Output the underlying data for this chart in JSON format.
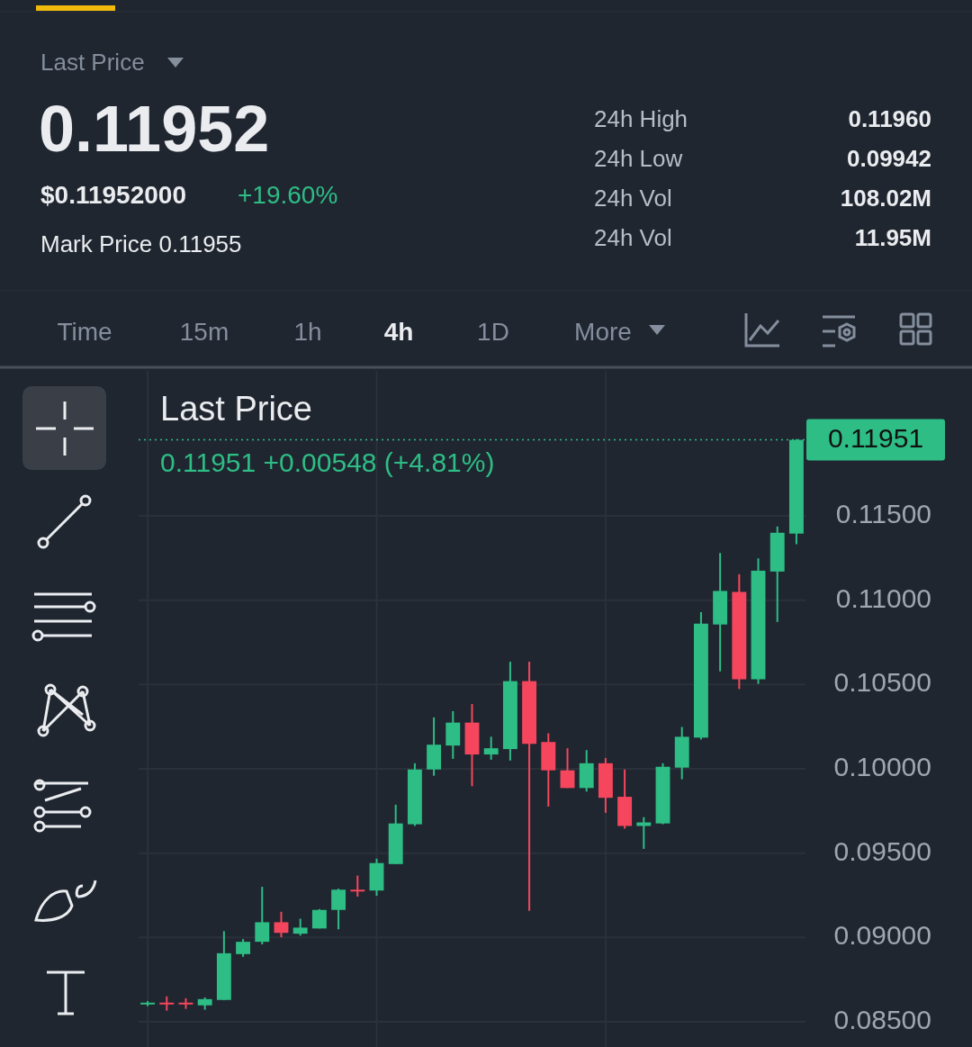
{
  "chart_data": {
    "type": "candlestick",
    "title": "Last Price",
    "annotations": [
      "Last Price",
      "0.11952",
      "$0.11952000",
      "+19.60%",
      "Mark Price 0.11955",
      "24h High",
      "0.11960",
      "24h Low",
      "0.09942",
      "24h Vol",
      "108.02M",
      "24h Vol",
      "11.95M",
      "Time",
      "15m",
      "1h",
      "4h",
      "1D",
      "More",
      "0.11951  +0.00548 (+4.81%)"
    ],
    "categories": [
      null,
      null,
      null,
      null,
      null,
      null,
      null,
      null,
      null,
      null,
      null,
      null,
      null,
      null,
      null,
      null,
      null,
      null,
      null,
      null,
      null,
      null,
      null,
      null,
      null,
      null,
      null,
      null,
      null,
      null,
      null,
      null,
      null,
      null,
      null
    ],
    "ohlc": [
      [
        0.0861,
        0.08623,
        0.08592,
        0.08613
      ],
      [
        0.08613,
        0.0865,
        0.08566,
        0.0861
      ],
      [
        0.08613,
        0.08639,
        0.08576,
        0.0861
      ],
      [
        0.08597,
        0.08644,
        0.08571,
        0.08634
      ],
      [
        0.08629,
        0.09037,
        0.08629,
        0.08906
      ],
      [
        0.08901,
        0.0899,
        0.08885,
        0.08974
      ],
      [
        0.08974,
        0.093,
        0.08959,
        0.0909
      ],
      [
        0.0909,
        0.09152,
        0.09001,
        0.09027
      ],
      [
        0.09022,
        0.09111,
        0.09011,
        0.09058
      ],
      [
        0.09053,
        0.09168,
        0.09053,
        0.09163
      ],
      [
        0.09163,
        0.09289,
        0.09048,
        0.09283
      ],
      [
        0.09283,
        0.09367,
        0.09242,
        0.0928
      ],
      [
        0.09278,
        0.09467,
        0.09247,
        0.09441
      ],
      [
        0.09435,
        0.09787,
        0.09435,
        0.09676
      ],
      [
        0.09671,
        0.10033,
        0.09661,
        0.09996
      ],
      [
        0.09996,
        0.10305,
        0.09959,
        0.10143
      ],
      [
        0.10138,
        0.10342,
        0.10059,
        0.10274
      ],
      [
        0.10274,
        0.10384,
        0.09897,
        0.10085
      ],
      [
        0.10085,
        0.1019,
        0.10054,
        0.10122
      ],
      [
        0.10117,
        0.10635,
        0.10049,
        0.1052
      ],
      [
        0.1052,
        0.10635,
        0.09158,
        0.10148
      ],
      [
        0.10159,
        0.10211,
        0.09776,
        0.09991
      ],
      [
        0.09991,
        0.10122,
        0.09886,
        0.09886
      ],
      [
        0.09886,
        0.10111,
        0.09865,
        0.10033
      ],
      [
        0.10033,
        0.10064,
        0.09739,
        0.09828
      ],
      [
        0.09834,
        0.09996,
        0.09645,
        0.09661
      ],
      [
        0.09661,
        0.09713,
        0.09525,
        0.09682
      ],
      [
        0.09676,
        0.10033,
        0.09671,
        0.10012
      ],
      [
        0.10007,
        0.10248,
        0.09938,
        0.1019
      ],
      [
        0.10185,
        0.10929,
        0.10174,
        0.10861
      ],
      [
        0.10856,
        0.1128,
        0.10578,
        0.11055
      ],
      [
        0.11049,
        0.11154,
        0.10473,
        0.10531
      ],
      [
        0.10531,
        0.11248,
        0.10504,
        0.11175
      ],
      [
        0.1117,
        0.11437,
        0.10871,
        0.114
      ],
      [
        0.11395,
        0.11955,
        0.11332,
        0.11951
      ]
    ],
    "colors": [
      "#2ebd85",
      "#f6465d",
      "#f6465d",
      "#2ebd85",
      "#2ebd85",
      "#2ebd85",
      "#2ebd85",
      "#f6465d",
      "#2ebd85",
      "#2ebd85",
      "#2ebd85",
      "#f6465d",
      "#2ebd85",
      "#2ebd85",
      "#2ebd85",
      "#2ebd85",
      "#2ebd85",
      "#f6465d",
      "#2ebd85",
      "#2ebd85",
      "#f6465d",
      "#f6465d",
      "#f6465d",
      "#2ebd85",
      "#f6465d",
      "#f6465d",
      "#2ebd85",
      "#2ebd85",
      "#2ebd85",
      "#2ebd85",
      "#2ebd85",
      "#f6465d",
      "#2ebd85",
      "#2ebd85",
      "#2ebd85"
    ],
    "ylim": [
      0.0835,
      0.1236
    ],
    "yticks": [
      {
        "value": 0.085,
        "label": "0.08500"
      },
      {
        "value": 0.09,
        "label": "0.09000"
      },
      {
        "value": 0.095,
        "label": "0.09500"
      },
      {
        "value": 0.1,
        "label": "0.10000"
      },
      {
        "value": 0.105,
        "label": "0.10500"
      },
      {
        "value": 0.11,
        "label": "0.11000"
      },
      {
        "value": 0.115,
        "label": "0.11500"
      }
    ],
    "ref_lines": [
      {
        "axis": "y",
        "value": 0.11951,
        "label": "0.11951",
        "color": "#2ebd85",
        "line_style": "dotted"
      }
    ],
    "grid": true
  }
}
